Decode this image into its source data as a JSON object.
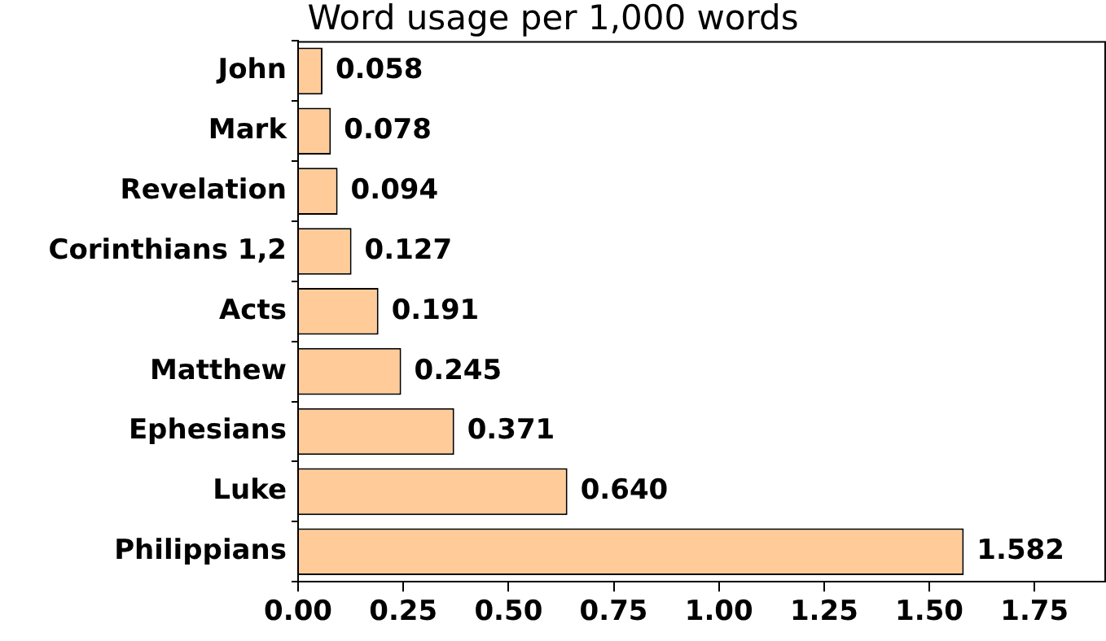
{
  "chart_data": {
    "type": "bar",
    "orientation": "horizontal",
    "title": "Word usage per 1,000 words",
    "categories": [
      "John",
      "Mark",
      "Revelation",
      "Corinthians 1,2",
      "Acts",
      "Matthew",
      "Ephesians",
      "Luke",
      "Philippians"
    ],
    "values": [
      0.058,
      0.078,
      0.094,
      0.127,
      0.191,
      0.245,
      0.371,
      0.64,
      1.582
    ],
    "value_labels": [
      "0.058",
      "0.078",
      "0.094",
      "0.127",
      "0.191",
      "0.245",
      "0.371",
      "0.640",
      "1.582"
    ],
    "color": "#ffcc99",
    "xlim": [
      0,
      1.92
    ],
    "xticks": [
      {
        "value": 0,
        "label": "0.00"
      },
      {
        "value": 0.25,
        "label": "0.25"
      },
      {
        "value": 0.5,
        "label": "0.50"
      },
      {
        "value": 0.75,
        "label": "0.75"
      },
      {
        "value": 1,
        "label": "1.00"
      },
      {
        "value": 1.25,
        "label": "1.25"
      },
      {
        "value": 1.5,
        "label": "1.50"
      },
      {
        "value": 1.75,
        "label": "1.75"
      }
    ],
    "grid": false,
    "legend": false
  }
}
